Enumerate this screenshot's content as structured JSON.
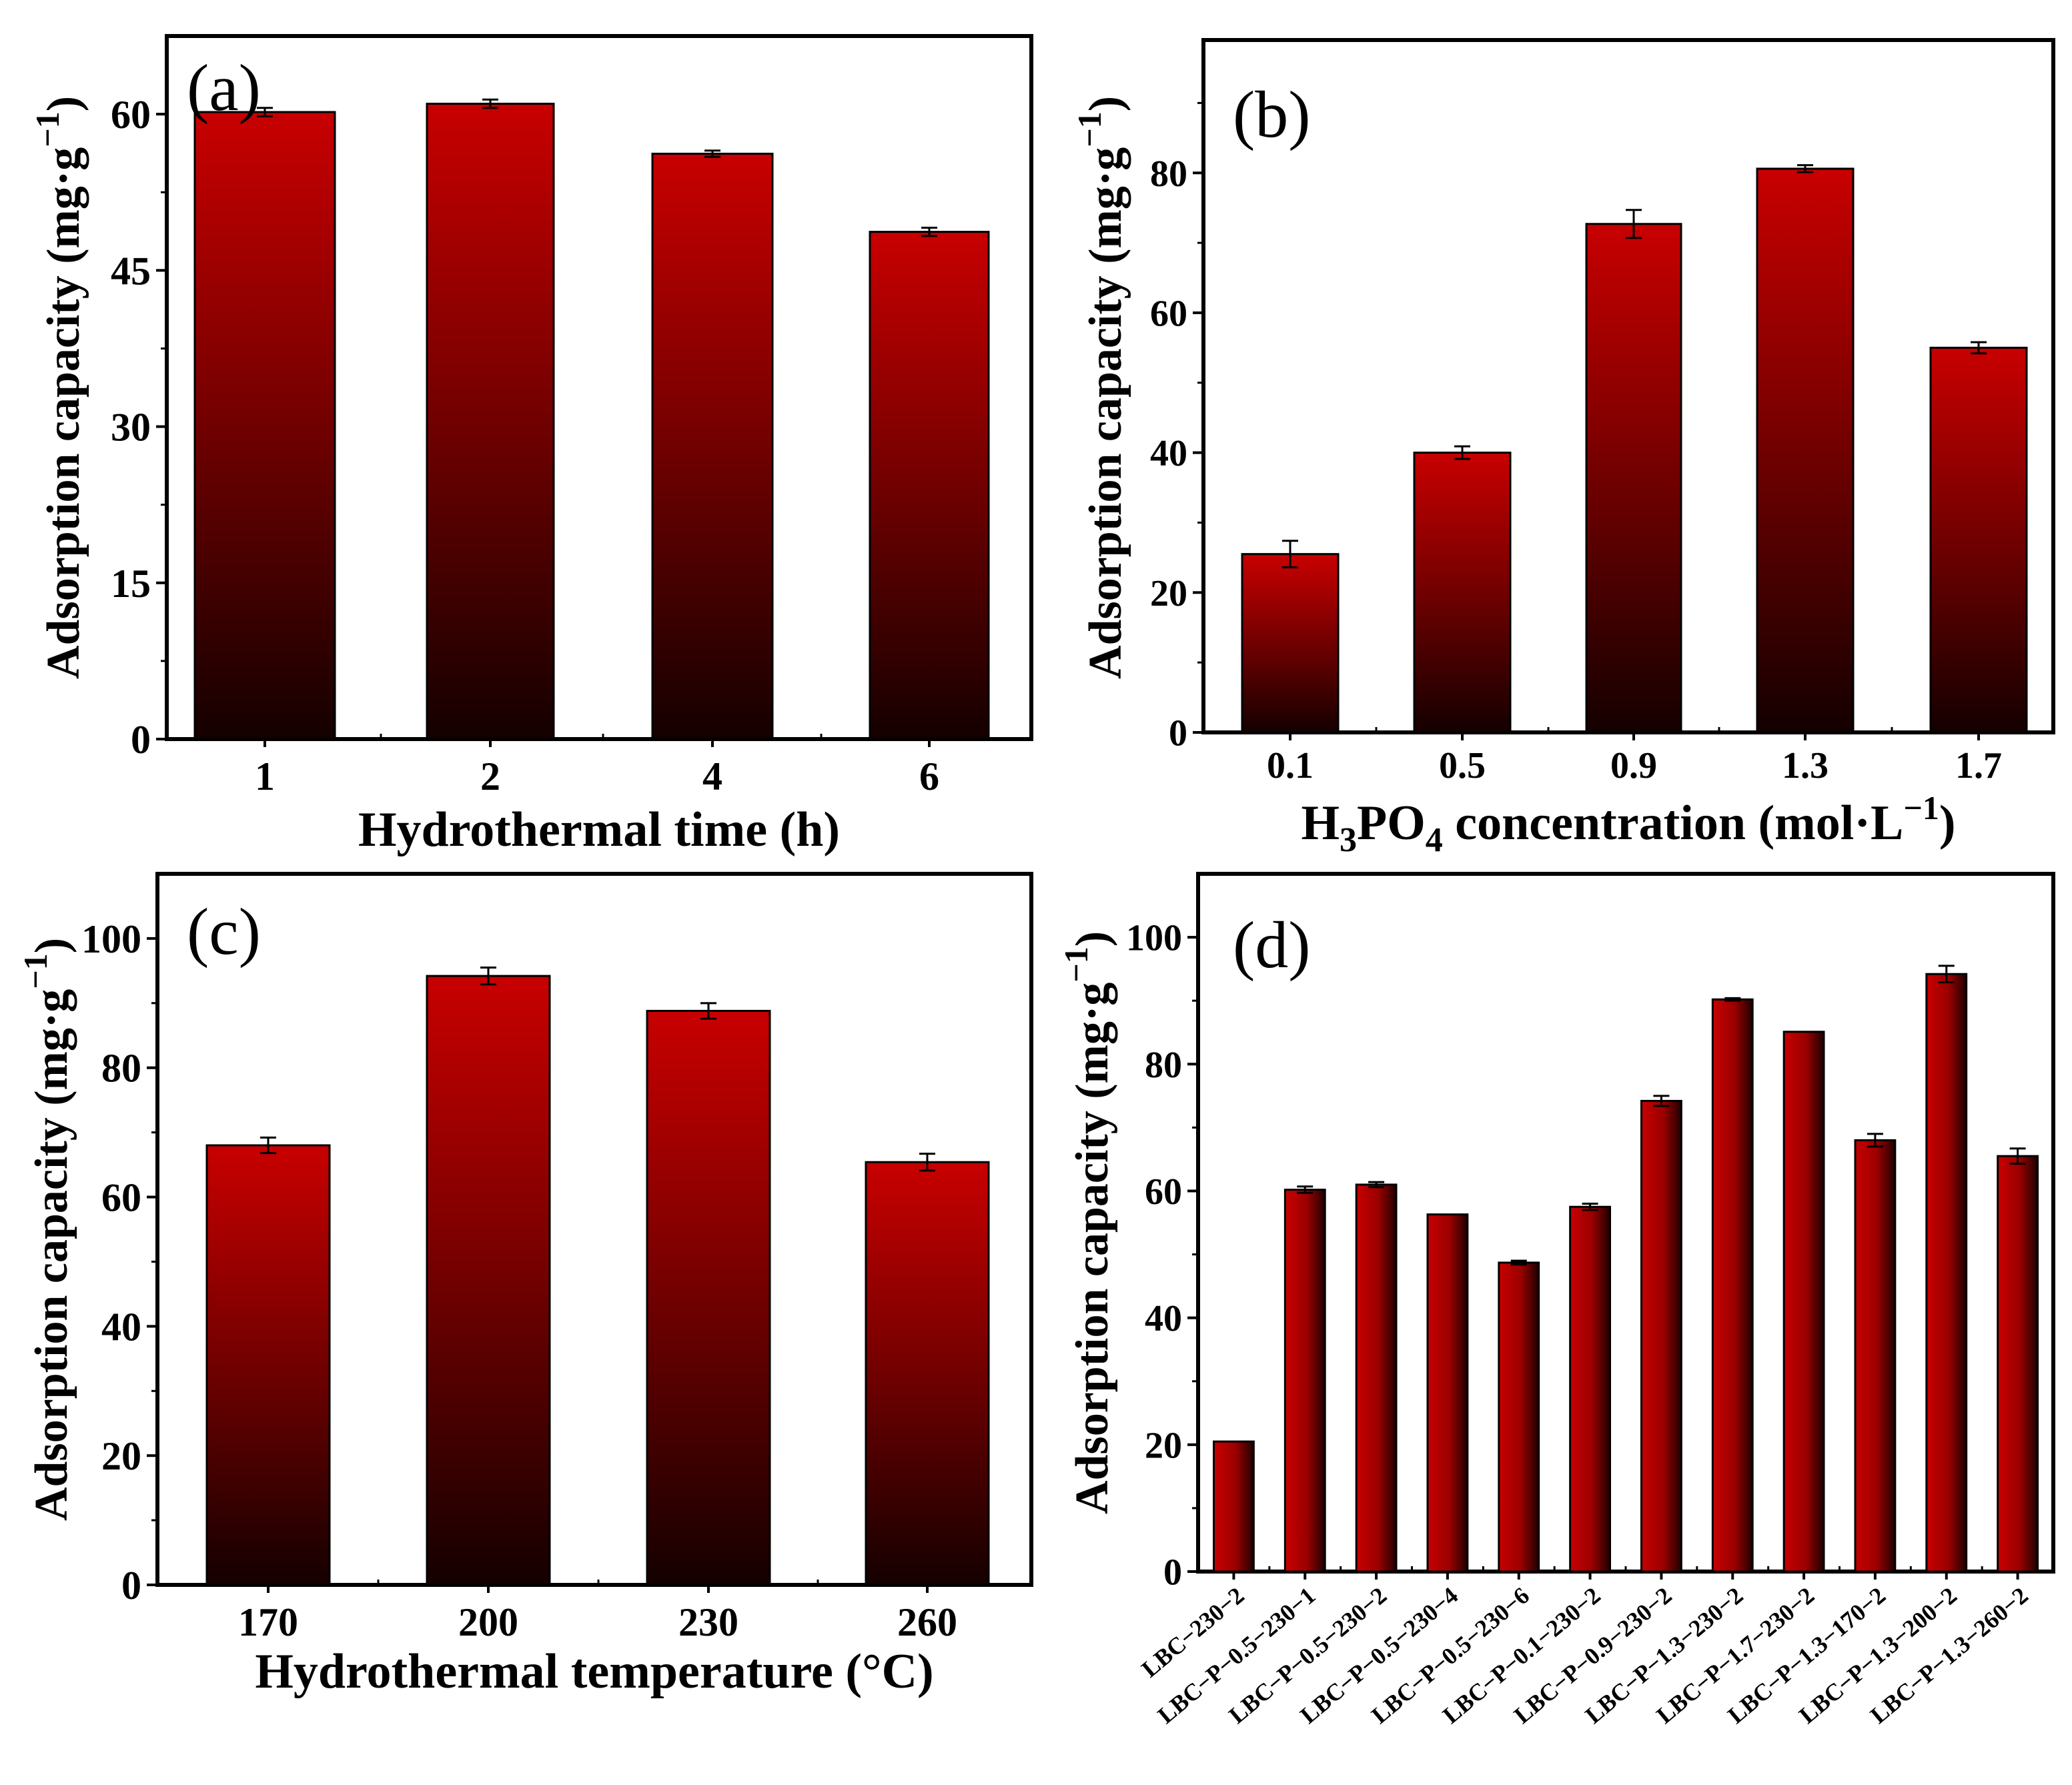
{
  "chart_data": [
    {
      "type": "bar",
      "panel_label": "(a)",
      "categories": [
        "1",
        "2",
        "4",
        "6"
      ],
      "values": [
        60.2,
        61.0,
        56.2,
        48.7
      ],
      "errors": [
        0.4,
        0.4,
        0.3,
        0.4
      ],
      "xlabel": "Hydrothermal time (h)",
      "ylabel": "Adsorption capacity (mg·g",
      "ylabel_sup": "−1",
      "ylabel_close": ")",
      "ylim": [
        0,
        67.5
      ],
      "yticks": [
        0,
        15,
        30,
        45,
        60
      ],
      "color_top": "#c80000",
      "color_bottom": "#140000"
    },
    {
      "type": "bar",
      "panel_label": "(b)",
      "categories": [
        "0.1",
        "0.5",
        "0.9",
        "1.3",
        "1.7"
      ],
      "values": [
        25.5,
        40.0,
        72.7,
        80.6,
        55.0
      ],
      "errors": [
        1.9,
        0.9,
        2.0,
        0.5,
        0.8
      ],
      "xlabel_parts": {
        "a": "H",
        "b": "3",
        "c": "PO",
        "d": "4",
        "e": " concentration (mol·L",
        "f": "−1",
        "g": ")"
      },
      "ylabel": "Adsorption capacity (mg·g",
      "ylabel_sup": "−1",
      "ylabel_close": ")",
      "ylim": [
        0,
        99
      ],
      "yticks": [
        0,
        20,
        40,
        60,
        80
      ],
      "color_top": "#c80000",
      "color_bottom": "#140000"
    },
    {
      "type": "bar",
      "panel_label": "(c)",
      "categories": [
        "170",
        "200",
        "230",
        "260"
      ],
      "values": [
        68.0,
        94.2,
        88.8,
        65.4
      ],
      "errors": [
        1.2,
        1.3,
        1.2,
        1.3
      ],
      "xlabel": "Hydrothermal temperature (°C)",
      "ylabel": "Adsorption capacity (mg·g",
      "ylabel_sup": "−1",
      "ylabel_close": ")",
      "ylim": [
        0,
        110
      ],
      "yticks": [
        0,
        20,
        40,
        60,
        80,
        100
      ],
      "color_top": "#c80000",
      "color_bottom": "#140000"
    },
    {
      "type": "bar",
      "panel_label": "(d)",
      "categories": [
        "LBC−230−2",
        "LBC−P−0.5−230−1",
        "LBC−P−0.5−230−2",
        "LBC−P−0.5−230−4",
        "LBC−P−0.5−230−6",
        "LBC−P−0.1−230−2",
        "LBC−P−0.9−230−2",
        "LBC−P−1.3−230−2",
        "LBC−P−1.7−230−2",
        "LBC−P−1.3−170−2",
        "LBC−P−1.3−200−2",
        "LBC−P−1.3−260−2"
      ],
      "values": [
        20.5,
        60.2,
        61.0,
        56.3,
        48.7,
        57.5,
        74.2,
        90.2,
        85.1,
        68.0,
        94.2,
        65.5
      ],
      "errors": [
        0,
        0.5,
        0.4,
        0,
        0.3,
        0.5,
        0.8,
        0.2,
        0,
        1.0,
        1.3,
        1.2
      ],
      "ylabel": "Adsorption capacity (mg·g",
      "ylabel_sup": "−1",
      "ylabel_close": ")",
      "ylim": [
        0,
        110
      ],
      "yticks": [
        0,
        20,
        40,
        60,
        80,
        100
      ],
      "color_left": "#c80000",
      "color_right": "#1e0000"
    }
  ]
}
